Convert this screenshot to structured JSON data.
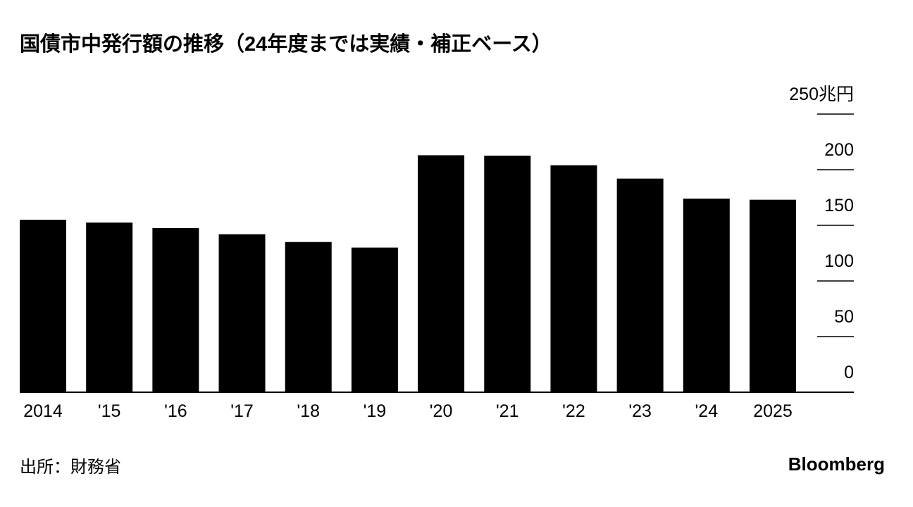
{
  "chart_data": {
    "type": "bar",
    "title": "国債市中発行額の推移（24年度までは実績・補正ベース）",
    "categories": [
      "2014",
      "'15",
      "'16",
      "'17",
      "'18",
      "'19",
      "'20",
      "'21",
      "'22",
      "'23",
      "'24",
      "2025"
    ],
    "values": [
      155,
      152.5,
      147.5,
      142,
      135,
      130,
      213,
      212.6,
      204,
      192,
      174,
      173
    ],
    "color": "#000000",
    "ylim": [
      0,
      250
    ],
    "yticks": [
      0,
      50,
      100,
      150,
      200,
      {
        "value": 250,
        "label": "250兆円"
      }
    ],
    "grid": false,
    "source": "出所：財務省",
    "brand": "Bloomberg"
  }
}
